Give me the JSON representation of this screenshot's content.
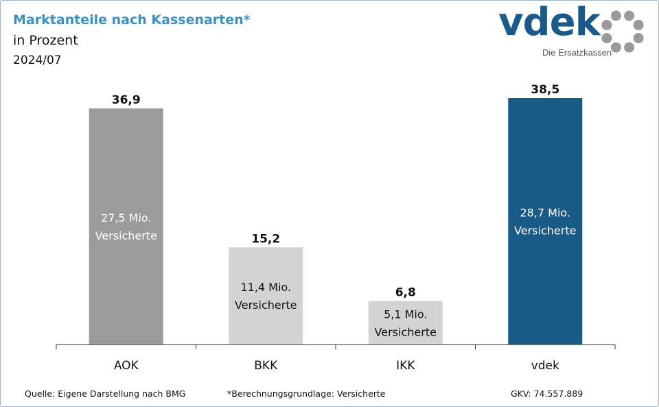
{
  "header": {
    "title": "Marktanteile nach Kassenarten*",
    "subtitle": "in Prozent",
    "period": "2024/07"
  },
  "logo": {
    "word": "vdek",
    "tagline": "Die Ersatzkassen",
    "icon": "vdek-ring-icon"
  },
  "chart_data": {
    "type": "bar",
    "title": "Marktanteile nach Kassenarten*",
    "categories": [
      "AOK",
      "BKK",
      "IKK",
      "vdek"
    ],
    "values": [
      36.9,
      15.2,
      6.8,
      38.5
    ],
    "value_labels": [
      "36,9",
      "15,2",
      "6,8",
      "38,5"
    ],
    "inner_labels": [
      [
        "27,5 Mio.",
        "Versicherte"
      ],
      [
        "11,4 Mio.",
        "Versicherte"
      ],
      [
        "5,1 Mio.",
        "Versicherte"
      ],
      [
        "28,7 Mio.",
        "Versicherte"
      ]
    ],
    "colors": [
      "#9b9b9b",
      "#d3d3d3",
      "#d3d3d3",
      "#1a5a86"
    ],
    "inner_label_colors": [
      "#ffffff",
      "#111111",
      "#111111",
      "#ffffff"
    ],
    "ylim": [
      0,
      38.5
    ],
    "grid": false,
    "legend": "none"
  },
  "footer": {
    "source": "Quelle: Eigene Darstellung nach BMG",
    "note": "*Berechnungsgrundlage: Versicherte",
    "total": "GKV: 74.557.889"
  }
}
